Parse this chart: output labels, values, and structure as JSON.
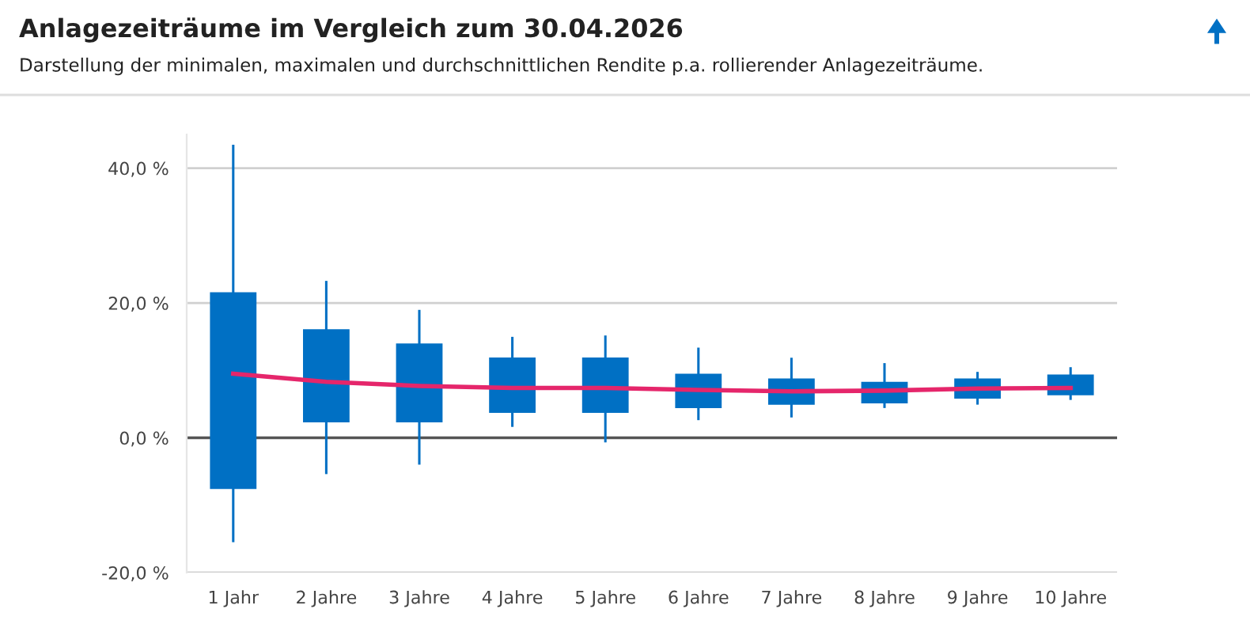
{
  "chart_data": {
    "type": "candlestick",
    "title": "Anlagezeiträume im Vergleich zum 30.04.2026",
    "subtitle": "Darstellung der minimalen, maximalen und durchschnittlichen Rendite p.a. rollierender Anlagezeiträume.",
    "categories": [
      "1 Jahr",
      "2 Jahre",
      "3 Jahre",
      "4 Jahre",
      "5 Jahre",
      "6 Jahre",
      "7 Jahre",
      "8 Jahre",
      "9 Jahre",
      "10 Jahre"
    ],
    "color": "#0070c4",
    "ohlc": [
      [
        -7.6,
        43.3,
        -15.3,
        21.6
      ],
      [
        2.3,
        23.1,
        -5.2,
        16.1
      ],
      [
        2.3,
        18.8,
        -3.8,
        14.0
      ],
      [
        3.7,
        14.8,
        1.8,
        11.9
      ],
      [
        3.7,
        15.0,
        -0.5,
        11.9
      ],
      [
        4.4,
        13.2,
        2.8,
        9.5
      ],
      [
        4.9,
        11.7,
        3.2,
        8.8
      ],
      [
        5.1,
        10.9,
        4.6,
        8.3
      ],
      [
        5.8,
        9.6,
        5.1,
        8.8
      ],
      [
        6.3,
        10.3,
        5.8,
        9.4
      ]
    ],
    "series": [
      {
        "type": "line",
        "color": "#e5266b",
        "values": [
          9.5,
          8.3,
          7.7,
          7.4,
          7.4,
          7.1,
          6.9,
          7.0,
          7.3,
          7.4
        ]
      }
    ],
    "ylim": [
      -20,
      45
    ],
    "yticks": [
      {
        "value": -20,
        "label": "-20,0 %"
      },
      {
        "value": 0,
        "label": "0,0 %"
      },
      {
        "value": 20,
        "label": "20,0 %"
      },
      {
        "value": 40,
        "label": "40,0 %"
      }
    ],
    "grid": "y",
    "marker": "none",
    "ref_lines": [
      {
        "axis": "y",
        "value": 0,
        "color": "#555555"
      }
    ]
  }
}
